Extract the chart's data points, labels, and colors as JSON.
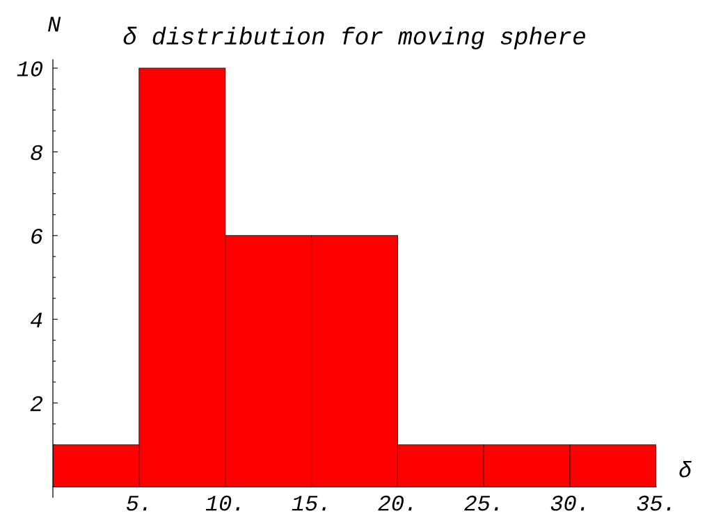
{
  "chart_data": {
    "type": "histogram",
    "title": "δ distribution for moving sphere",
    "xlabel": "δ",
    "ylabel": "N",
    "bins": [
      0,
      5,
      10,
      15,
      20,
      25,
      30,
      35
    ],
    "values": [
      1,
      10,
      6,
      6,
      1,
      1,
      1
    ],
    "color": "#ff0000",
    "xlim": [
      0,
      35
    ],
    "ylim": [
      -0.25,
      10.2
    ],
    "xticks": [
      {
        "value": 5,
        "label": "5."
      },
      {
        "value": 10,
        "label": "10."
      },
      {
        "value": 15,
        "label": "15."
      },
      {
        "value": 20,
        "label": "20."
      },
      {
        "value": 25,
        "label": "25."
      },
      {
        "value": 30,
        "label": "30."
      },
      {
        "value": 35,
        "label": "35."
      }
    ],
    "yticks": [
      {
        "value": 0.5,
        "label": null
      },
      {
        "value": 1,
        "label": null
      },
      {
        "value": 1.5,
        "label": null
      },
      2,
      {
        "value": 2.5,
        "label": null
      },
      {
        "value": 3,
        "label": null
      },
      {
        "value": 3.5,
        "label": null
      },
      4,
      {
        "value": 4.5,
        "label": null
      },
      {
        "value": 5,
        "label": null
      },
      {
        "value": 5.5,
        "label": null
      },
      6,
      {
        "value": 6.5,
        "label": null
      },
      {
        "value": 7,
        "label": null
      },
      {
        "value": 7.5,
        "label": null
      },
      8,
      {
        "value": 8.5,
        "label": null
      },
      {
        "value": 9,
        "label": null
      },
      {
        "value": 9.5,
        "label": null
      },
      10
    ]
  }
}
